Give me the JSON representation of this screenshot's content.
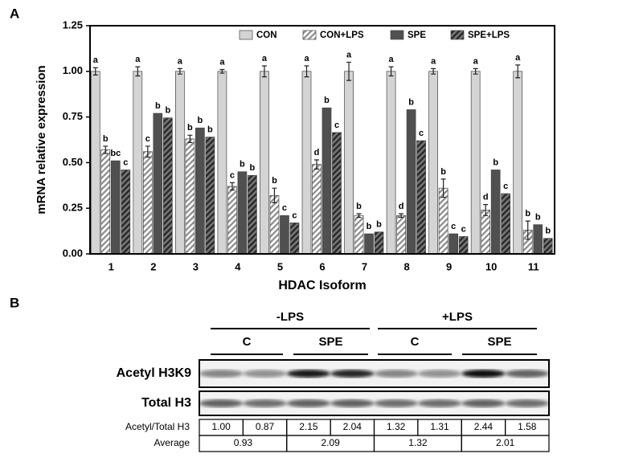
{
  "panel_labels": [
    "A",
    "B"
  ],
  "chart_data": {
    "type": "bar",
    "xlabel": "HDAC Isoform",
    "ylabel": "mRNA relative expression",
    "categories": [
      "1",
      "2",
      "3",
      "4",
      "5",
      "6",
      "7",
      "8",
      "9",
      "10",
      "11"
    ],
    "ylim": [
      0,
      1.25
    ],
    "yticks": [
      {
        "value": 0,
        "label": "0.00"
      },
      {
        "value": 0.25,
        "label": "0.25"
      },
      {
        "value": 0.5,
        "label": "0.50"
      },
      {
        "value": 0.75,
        "label": "0.75"
      },
      {
        "value": 1,
        "label": "1.00"
      },
      {
        "value": 1.25,
        "label": "1.25"
      }
    ],
    "legend": "top-right",
    "series": [
      {
        "name": "CON",
        "color": "#d4d4d4",
        "hatched": false,
        "values": [
          1,
          1,
          1,
          1,
          1,
          1,
          1,
          1,
          1,
          1,
          1
        ],
        "errors": [
          0.02,
          0.025,
          0.015,
          0.01,
          0.03,
          0.03,
          0.05,
          0.025,
          0.015,
          0.015,
          0.035
        ],
        "letters": [
          "a",
          "a",
          "a",
          "a",
          "a",
          "a",
          "a",
          "a",
          "a",
          "a",
          "a"
        ]
      },
      {
        "name": "CON+LPS",
        "color": "#8a8a8a",
        "hatched": true,
        "values": [
          0.57,
          0.56,
          0.63,
          0.37,
          0.32,
          0.49,
          0.21,
          0.21,
          0.36,
          0.24,
          0.13
        ],
        "errors": [
          0.02,
          0.03,
          0.02,
          0.02,
          0.04,
          0.025,
          0.01,
          0.01,
          0.05,
          0.03,
          0.05
        ],
        "letters": [
          "b",
          "c",
          "b",
          "c",
          "b",
          "d",
          "b",
          "d",
          "b",
          "d",
          "b"
        ]
      },
      {
        "name": "SPE",
        "color": "#505050",
        "hatched": false,
        "values": [
          0.51,
          0.77,
          0.69,
          0.45,
          0.21,
          0.8,
          0.11,
          0.79,
          0.11,
          0.46,
          0.16
        ],
        "letters": [
          "bc",
          "b",
          "b",
          "b",
          "c",
          "b",
          "b",
          "b",
          "c",
          "b",
          "b"
        ]
      },
      {
        "name": "SPE+LPS",
        "color": "#3a3a3a",
        "hatched": true,
        "values": [
          0.46,
          0.745,
          0.64,
          0.43,
          0.17,
          0.665,
          0.12,
          0.62,
          0.095,
          0.33,
          0.085
        ],
        "letters": [
          "c",
          "b",
          "b",
          "b",
          "c",
          "c",
          "b",
          "c",
          "c",
          "c",
          "b"
        ]
      }
    ]
  },
  "blot": {
    "groups": [
      "-LPS",
      "+LPS"
    ],
    "subgroups": [
      "C",
      "SPE",
      "C",
      "SPE"
    ],
    "rows": [
      "Acetyl H3K9",
      "Total H3"
    ],
    "table": {
      "row_labels": [
        "Acetyl/Total H3",
        "Average"
      ],
      "ratios": [
        "1.00",
        "0.87",
        "2.15",
        "2.04",
        "1.32",
        "1.31",
        "2.44",
        "1.58"
      ],
      "averages": [
        "0.93",
        "2.09",
        "1.32",
        "2.01"
      ]
    }
  }
}
